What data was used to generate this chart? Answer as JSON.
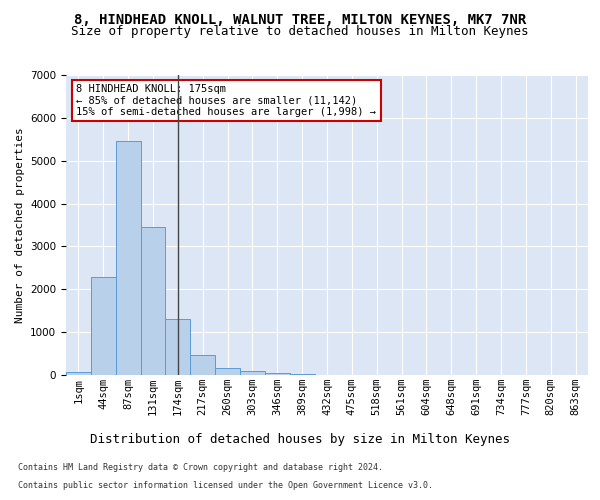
{
  "title": "8, HINDHEAD KNOLL, WALNUT TREE, MILTON KEYNES, MK7 7NR",
  "subtitle": "Size of property relative to detached houses in Milton Keynes",
  "xlabel": "Distribution of detached houses by size in Milton Keynes",
  "ylabel": "Number of detached properties",
  "footer_line1": "Contains HM Land Registry data © Crown copyright and database right 2024.",
  "footer_line2": "Contains public sector information licensed under the Open Government Licence v3.0.",
  "bar_labels": [
    "1sqm",
    "44sqm",
    "87sqm",
    "131sqm",
    "174sqm",
    "217sqm",
    "260sqm",
    "303sqm",
    "346sqm",
    "389sqm",
    "432sqm",
    "475sqm",
    "518sqm",
    "561sqm",
    "604sqm",
    "648sqm",
    "691sqm",
    "734sqm",
    "777sqm",
    "820sqm",
    "863sqm"
  ],
  "bar_values": [
    75,
    2280,
    5470,
    3450,
    1310,
    470,
    160,
    85,
    55,
    30,
    0,
    0,
    0,
    0,
    0,
    0,
    0,
    0,
    0,
    0,
    0
  ],
  "bar_color": "#b8d0ea",
  "bar_edge_color": "#5b9bd5",
  "vline_x": 4,
  "vline_color": "#444444",
  "annotation_text": "8 HINDHEAD KNOLL: 175sqm\n← 85% of detached houses are smaller (11,142)\n15% of semi-detached houses are larger (1,998) →",
  "annotation_box_color": "#ffffff",
  "annotation_box_edge": "#cc0000",
  "ylim": [
    0,
    7000
  ],
  "plot_bg": "#dce6f5",
  "grid_color": "#ffffff",
  "title_fontsize": 10,
  "subtitle_fontsize": 9,
  "xlabel_fontsize": 9,
  "ylabel_fontsize": 8,
  "tick_fontsize": 7.5,
  "annotation_fontsize": 7.5,
  "footer_fontsize": 6
}
